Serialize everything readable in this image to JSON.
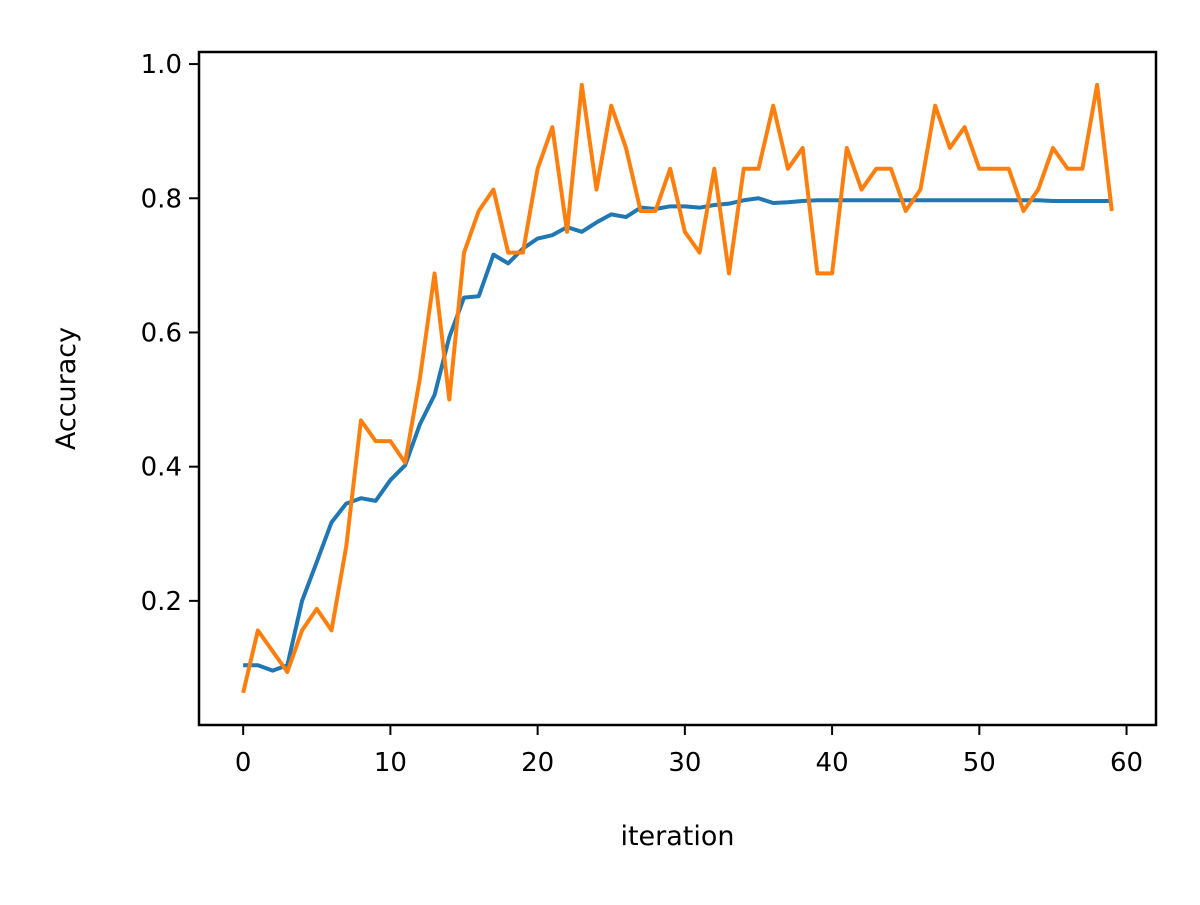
{
  "chart_data": {
    "type": "line",
    "title": "",
    "xlabel": "iteration",
    "ylabel": "Accuracy",
    "xlim": [
      -3,
      62
    ],
    "ylim": [
      0.015,
      1.018
    ],
    "x_ticks": [
      0,
      10,
      20,
      30,
      40,
      50,
      60
    ],
    "x_tick_labels": [
      "0",
      "10",
      "20",
      "30",
      "40",
      "50",
      "60"
    ],
    "y_ticks": [
      0.2,
      0.4,
      0.6,
      0.8,
      1.0
    ],
    "y_tick_labels": [
      "0.2",
      "0.4",
      "0.6",
      "0.8",
      "1.0"
    ],
    "grid": false,
    "legend": "none",
    "x": [
      0,
      1,
      2,
      3,
      4,
      5,
      6,
      7,
      8,
      9,
      10,
      11,
      12,
      13,
      14,
      15,
      16,
      17,
      18,
      19,
      20,
      21,
      22,
      23,
      24,
      25,
      26,
      27,
      28,
      29,
      30,
      31,
      32,
      33,
      34,
      35,
      36,
      37,
      38,
      39,
      40,
      41,
      42,
      43,
      44,
      45,
      46,
      47,
      48,
      49,
      50,
      51,
      52,
      53,
      54,
      55,
      56,
      57,
      58,
      59
    ],
    "series": [
      {
        "color": "#1f77b4",
        "values": [
          0.104,
          0.104,
          0.096,
          0.104,
          0.2,
          0.258,
          0.317,
          0.345,
          0.353,
          0.349,
          0.38,
          0.402,
          0.463,
          0.507,
          0.593,
          0.652,
          0.654,
          0.716,
          0.703,
          0.725,
          0.74,
          0.745,
          0.757,
          0.75,
          0.764,
          0.776,
          0.772,
          0.786,
          0.784,
          0.788,
          0.788,
          0.786,
          0.79,
          0.792,
          0.797,
          0.8,
          0.793,
          0.794,
          0.796,
          0.797,
          0.797,
          0.797,
          0.797,
          0.797,
          0.797,
          0.797,
          0.797,
          0.797,
          0.797,
          0.797,
          0.797,
          0.797,
          0.797,
          0.797,
          0.797,
          0.796,
          0.796,
          0.796,
          0.796,
          0.796
        ]
      },
      {
        "color": "#ff7f0e",
        "values": [
          0.063,
          0.156,
          0.125,
          0.094,
          0.156,
          0.188,
          0.156,
          0.281,
          0.469,
          0.438,
          0.438,
          0.406,
          0.531,
          0.688,
          0.5,
          0.719,
          0.781,
          0.813,
          0.719,
          0.719,
          0.844,
          0.906,
          0.75,
          0.969,
          0.813,
          0.938,
          0.875,
          0.781,
          0.781,
          0.844,
          0.75,
          0.719,
          0.844,
          0.688,
          0.844,
          0.844,
          0.938,
          0.844,
          0.875,
          0.688,
          0.688,
          0.875,
          0.813,
          0.844,
          0.844,
          0.781,
          0.813,
          0.938,
          0.875,
          0.906,
          0.844,
          0.844,
          0.844,
          0.781,
          0.813,
          0.875,
          0.844,
          0.844,
          0.969,
          0.781
        ]
      }
    ]
  }
}
